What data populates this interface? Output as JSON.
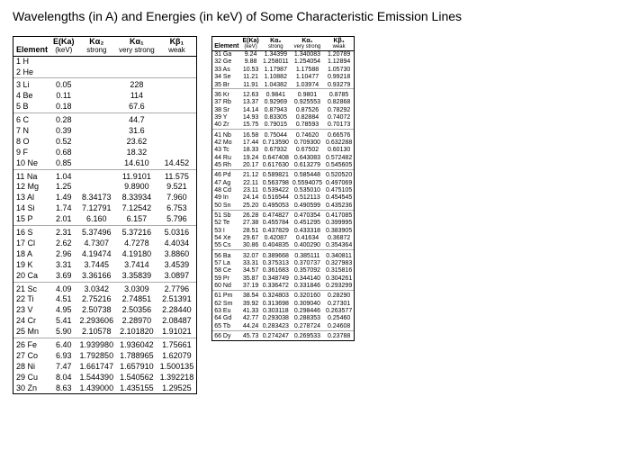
{
  "title": "Wavelengths (in A) and Energies (in keV) of Some Characteristic Emission Lines",
  "headers": {
    "element": "Element",
    "eka": "E(Ka)",
    "eka_sub": "(keV)",
    "ka2": "Kα₂",
    "ka2_sub": "strong",
    "ka1": "Kα₁",
    "ka1_sub": "very strong",
    "kb1": "Kβ₁",
    "kb1_sub": "weak"
  },
  "left": [
    {
      "el": "1 H"
    },
    {
      "el": "2 He"
    },
    {
      "el": "3 Li",
      "eka": "0.05",
      "ka1": "228"
    },
    {
      "el": "4 Be",
      "eka": "0.11",
      "ka1": "114"
    },
    {
      "el": "5 B",
      "eka": "0.18",
      "ka1": "67.6"
    },
    {
      "el": "6 C",
      "eka": "0.28",
      "ka1": "44.7"
    },
    {
      "el": "7 N",
      "eka": "0.39",
      "ka1": "31.6"
    },
    {
      "el": "8 O",
      "eka": "0.52",
      "ka1": "23.62"
    },
    {
      "el": "9 F",
      "eka": "0.68",
      "ka1": "18.32"
    },
    {
      "el": "10 Ne",
      "eka": "0.85",
      "ka1": "14.610",
      "kb1": "14.452"
    },
    {
      "el": "11 Na",
      "eka": "1.04",
      "ka1": "11.9101",
      "kb1": "11.575"
    },
    {
      "el": "12 Mg",
      "eka": "1.25",
      "ka1": "9.8900",
      "kb1": "9.521"
    },
    {
      "el": "13 Al",
      "eka": "1.49",
      "ka2": "8.34173",
      "ka1": "8.33934",
      "kb1": "7.960"
    },
    {
      "el": "14 Si",
      "eka": "1.74",
      "ka2": "7.12791",
      "ka1": "7.12542",
      "kb1": "6.753"
    },
    {
      "el": "15 P",
      "eka": "2.01",
      "ka2": "6.160",
      "ka1": "6.157",
      "kb1": "5.796"
    },
    {
      "el": "16 S",
      "eka": "2.31",
      "ka2": "5.37496",
      "ka1": "5.37216",
      "kb1": "5.0316"
    },
    {
      "el": "17 Cl",
      "eka": "2.62",
      "ka2": "4.7307",
      "ka1": "4.7278",
      "kb1": "4.4034"
    },
    {
      "el": "18 A",
      "eka": "2.96",
      "ka2": "4.19474",
      "ka1": "4.19180",
      "kb1": "3.8860"
    },
    {
      "el": "19 K",
      "eka": "3.31",
      "ka2": "3.7445",
      "ka1": "3.7414",
      "kb1": "3.4539"
    },
    {
      "el": "20 Ca",
      "eka": "3.69",
      "ka2": "3.36166",
      "ka1": "3.35839",
      "kb1": "3.0897"
    },
    {
      "el": "21 Sc",
      "eka": "4.09",
      "ka2": "3.0342",
      "ka1": "3.0309",
      "kb1": "2.7796"
    },
    {
      "el": "22 Ti",
      "eka": "4.51",
      "ka2": "2.75216",
      "ka1": "2.74851",
      "kb1": "2.51391"
    },
    {
      "el": "23 V",
      "eka": "4.95",
      "ka2": "2.50738",
      "ka1": "2.50356",
      "kb1": "2.28440"
    },
    {
      "el": "24 Cr",
      "eka": "5.41",
      "ka2": "2.293606",
      "ka1": "2.28970",
      "kb1": "2.08487"
    },
    {
      "el": "25 Mn",
      "eka": "5.90",
      "ka2": "2.10578",
      "ka1": "2.101820",
      "kb1": "1.91021"
    },
    {
      "el": "26 Fe",
      "eka": "6.40",
      "ka2": "1.939980",
      "ka1": "1.936042",
      "kb1": "1.75661"
    },
    {
      "el": "27 Co",
      "eka": "6.93",
      "ka2": "1.792850",
      "ka1": "1.788965",
      "kb1": "1.62079"
    },
    {
      "el": "28 Ni",
      "eka": "7.47",
      "ka2": "1.661747",
      "ka1": "1.657910",
      "kb1": "1.500135"
    },
    {
      "el": "29 Cu",
      "eka": "8.04",
      "ka2": "1.544390",
      "ka1": "1.540562",
      "kb1": "1.392218"
    },
    {
      "el": "30 Zn",
      "eka": "8.63",
      "ka2": "1.439000",
      "ka1": "1.435155",
      "kb1": "1.29525"
    }
  ],
  "right": [
    {
      "el": "31 Ga",
      "eka": "9.24",
      "ka2": "1.34399",
      "ka1": "1.340083",
      "kb1": "1.20789"
    },
    {
      "el": "32 Ge",
      "eka": "9.88",
      "ka2": "1.258011",
      "ka1": "1.254054",
      "kb1": "1.12894"
    },
    {
      "el": "33 As",
      "eka": "10.53",
      "ka2": "1.17987",
      "ka1": "1.17588",
      "kb1": "1.05730"
    },
    {
      "el": "34 Se",
      "eka": "11.21",
      "ka2": "1.10882",
      "ka1": "1.10477",
      "kb1": "0.99218"
    },
    {
      "el": "35 Br",
      "eka": "11.91",
      "ka2": "1.04382",
      "ka1": "1.03974",
      "kb1": "0.93279"
    },
    {
      "el": "36 Kr",
      "eka": "12.63",
      "ka2": "0.9841",
      "ka1": "0.9801",
      "kb1": "0.8785"
    },
    {
      "el": "37 Rb",
      "eka": "13.37",
      "ka2": "0.92969",
      "ka1": "0.925553",
      "kb1": "0.82868"
    },
    {
      "el": "38 Sr",
      "eka": "14.14",
      "ka2": "0.87943",
      "ka1": "0.87526",
      "kb1": "0.78292"
    },
    {
      "el": "39 Y",
      "eka": "14.93",
      "ka2": "0.83305",
      "ka1": "0.82884",
      "kb1": "0.74072"
    },
    {
      "el": "40 Zr",
      "eka": "15.75",
      "ka2": "0.79015",
      "ka1": "0.78593",
      "kb1": "0.70173"
    },
    {
      "el": "41 Nb",
      "eka": "16.58",
      "ka2": "0.75044",
      "ka1": "0.74620",
      "kb1": "0.66576"
    },
    {
      "el": "42 Mo",
      "eka": "17.44",
      "ka2": "0.713590",
      "ka1": "0.709300",
      "kb1": "0.632288"
    },
    {
      "el": "43 Tc",
      "eka": "18.33",
      "ka2": "0.67932",
      "ka1": "0.67502",
      "kb1": "0.60130"
    },
    {
      "el": "44 Ru",
      "eka": "19.24",
      "ka2": "0.647408",
      "ka1": "0.643083",
      "kb1": "0.572482"
    },
    {
      "el": "45 Rh",
      "eka": "20.17",
      "ka2": "0.617630",
      "ka1": "0.613279",
      "kb1": "0.545605"
    },
    {
      "el": "46 Pd",
      "eka": "21.12",
      "ka2": "0.589821",
      "ka1": "0.585448",
      "kb1": "0.520520"
    },
    {
      "el": "47 Ag",
      "eka": "22.11",
      "ka2": "0.563798",
      "ka1": "0.5594075",
      "kb1": "0.497069"
    },
    {
      "el": "48 Cd",
      "eka": "23.11",
      "ka2": "0.539422",
      "ka1": "0.535010",
      "kb1": "0.475105"
    },
    {
      "el": "49 In",
      "eka": "24.14",
      "ka2": "0.516544",
      "ka1": "0.512113",
      "kb1": "0.454545"
    },
    {
      "el": "50 Sn",
      "eka": "25.20",
      "ka2": "0.495053",
      "ka1": "0.490599",
      "kb1": "0.435236"
    },
    {
      "el": "51 Sb",
      "eka": "26.28",
      "ka2": "0.474827",
      "ka1": "0.470354",
      "kb1": "0.417085"
    },
    {
      "el": "52 Te",
      "eka": "27.38",
      "ka2": "0.455784",
      "ka1": "0.451295",
      "kb1": "0.399995"
    },
    {
      "el": "53 I",
      "eka": "28.51",
      "ka2": "0.437829",
      "ka1": "0.433318",
      "kb1": "0.383905"
    },
    {
      "el": "54 Xe",
      "eka": "29.67",
      "ka2": "0.42087",
      "ka1": "0.41634",
      "kb1": "0.36872"
    },
    {
      "el": "55 Cs",
      "eka": "30.86",
      "ka2": "0.404835",
      "ka1": "0.400290",
      "kb1": "0.354364"
    },
    {
      "el": "56 Ba",
      "eka": "32.07",
      "ka2": "0.389668",
      "ka1": "0.385111",
      "kb1": "0.340811"
    },
    {
      "el": "57 La",
      "eka": "33.31",
      "ka2": "0.375313",
      "ka1": "0.370737",
      "kb1": "0.327983"
    },
    {
      "el": "58 Ce",
      "eka": "34.57",
      "ka2": "0.361683",
      "ka1": "0.357092",
      "kb1": "0.315816"
    },
    {
      "el": "59 Pr",
      "eka": "35.87",
      "ka2": "0.348749",
      "ka1": "0.344140",
      "kb1": "0.304261"
    },
    {
      "el": "60 Nd",
      "eka": "37.19",
      "ka2": "0.336472",
      "ka1": "0.331846",
      "kb1": "0.293299"
    },
    {
      "el": "61 Pm",
      "eka": "38.54",
      "ka2": "0.324803",
      "ka1": "0.320160",
      "kb1": "0.28290"
    },
    {
      "el": "62 Sm",
      "eka": "39.92",
      "ka2": "0.313698",
      "ka1": "0.309040",
      "kb1": "0.27301"
    },
    {
      "el": "63 Eu",
      "eka": "41.33",
      "ka2": "0.303118",
      "ka1": "0.298446",
      "kb1": "0.263577"
    },
    {
      "el": "64 Gd",
      "eka": "42.77",
      "ka2": "0.293038",
      "ka1": "0.288353",
      "kb1": "0.25460"
    },
    {
      "el": "65 Tb",
      "eka": "44.24",
      "ka2": "0.283423",
      "ka1": "0.278724",
      "kb1": "0.24608"
    },
    {
      "el": "66 Dy",
      "eka": "45.73",
      "ka2": "0.274247",
      "ka1": "0.269533",
      "kb1": "0.23788"
    }
  ],
  "leftGroups": [
    2,
    5,
    10,
    15,
    20,
    25
  ],
  "rightGroups": [
    5,
    10,
    15,
    20,
    25,
    30,
    35
  ]
}
